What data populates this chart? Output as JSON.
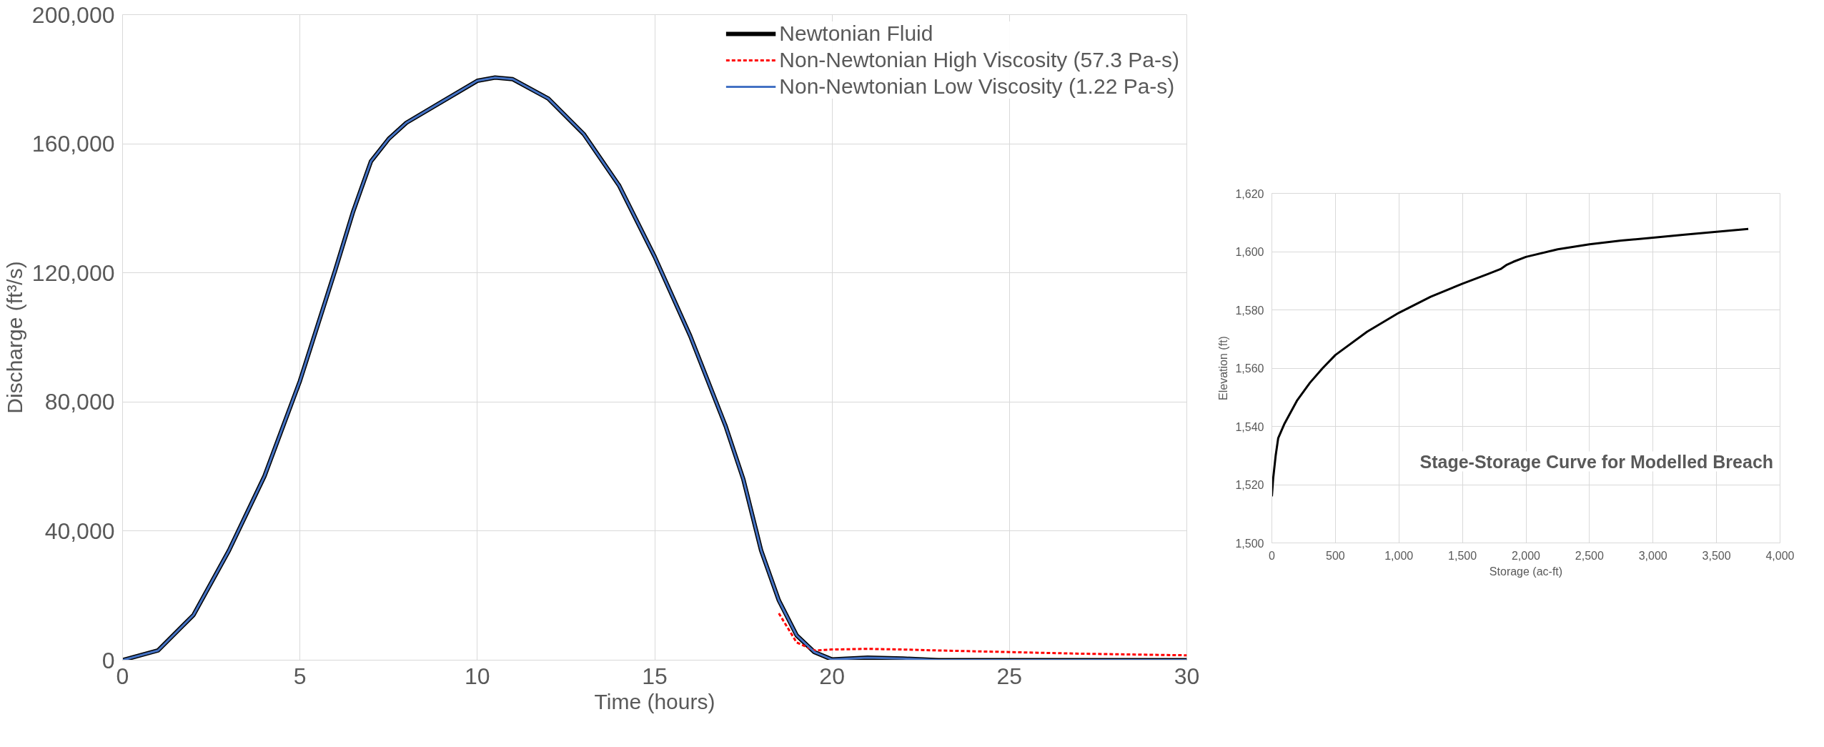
{
  "chart_data": [
    {
      "type": "line",
      "xlabel": "Time (hours)",
      "ylabel": "Discharge (ft³/s)",
      "x": [
        0,
        1,
        2,
        3,
        4,
        5,
        6,
        6.5,
        7,
        7.5,
        8,
        9,
        10,
        10.5,
        11,
        12,
        13,
        14,
        15,
        16,
        17,
        17.5,
        18,
        18.5,
        19,
        19.5,
        20,
        21,
        22,
        23,
        25,
        27,
        30
      ],
      "series": [
        {
          "name": "Newtonian Fluid",
          "color": "#000000",
          "line_style": "solid",
          "values": [
            0,
            3000,
            14000,
            34000,
            57000,
            86500,
            121000,
            139000,
            154500,
            161500,
            166500,
            173000,
            179500,
            180500,
            180000,
            174000,
            163000,
            147000,
            125000,
            100500,
            72500,
            56000,
            34000,
            18500,
            7700,
            2500,
            200,
            800,
            500,
            0,
            0,
            0,
            0
          ]
        },
        {
          "name": "Non-Newtonian High Viscosity (57.3 Pa-s)",
          "color": "#ff0000",
          "line_style": "dashed",
          "values": [
            null,
            null,
            null,
            null,
            null,
            null,
            null,
            null,
            null,
            null,
            null,
            null,
            null,
            null,
            null,
            null,
            null,
            null,
            null,
            null,
            null,
            null,
            null,
            14500,
            5500,
            3000,
            3300,
            3500,
            3300,
            3000,
            2500,
            2000,
            1500
          ]
        },
        {
          "name": "Non-Newtonian Low Viscosity (1.22 Pa-s)",
          "color": "#4472c4",
          "line_style": "solid",
          "values": [
            0,
            3000,
            14000,
            34000,
            57000,
            86500,
            121000,
            139000,
            154500,
            161500,
            166500,
            173000,
            179500,
            180500,
            180000,
            174000,
            163000,
            147000,
            125000,
            100500,
            72500,
            56000,
            34000,
            18500,
            7700,
            2500,
            200,
            800,
            500,
            0,
            0,
            0,
            0
          ]
        }
      ],
      "xlim": [
        0,
        30
      ],
      "xticks": [
        0,
        5,
        10,
        15,
        20,
        25,
        30
      ],
      "ylim": [
        0,
        200000
      ],
      "yticks": [
        {
          "value": 0,
          "label": "0"
        },
        {
          "value": 40000,
          "label": "40,000"
        },
        {
          "value": 80000,
          "label": "80,000"
        },
        {
          "value": 120000,
          "label": "120,000"
        },
        {
          "value": 160000,
          "label": "160,000"
        },
        {
          "value": 200000,
          "label": "200,000"
        }
      ],
      "grid": true,
      "legend": "top right"
    },
    {
      "type": "line",
      "xlabel": "Storage (ac-ft)",
      "ylabel": "Elevation (ft)",
      "annotations": [
        "Stage-Storage Curve for Modelled Breach"
      ],
      "x": [
        0,
        10,
        30,
        50,
        100,
        200,
        300,
        400,
        500,
        750,
        1000,
        1250,
        1500,
        1700,
        1800,
        1850,
        1900,
        2000,
        2250,
        2500,
        2750,
        3000,
        3250,
        3500,
        3750
      ],
      "series": [
        {
          "color": "#000000",
          "line_style": "solid",
          "values": [
            1516,
            1522,
            1530,
            1536,
            1541,
            1549,
            1555,
            1560,
            1564.5,
            1572.5,
            1579,
            1584.5,
            1589,
            1592.3,
            1594,
            1595.5,
            1596.5,
            1598.2,
            1600.8,
            1602.5,
            1603.8,
            1604.8,
            1605.8,
            1606.8,
            1607.8
          ]
        }
      ],
      "xlim": [
        0,
        4000
      ],
      "xticks": [
        0,
        500,
        {
          "value": 1000,
          "label": "1,000"
        },
        {
          "value": 1500,
          "label": "1,500"
        },
        {
          "value": 2000,
          "label": "2,000"
        },
        {
          "value": 2500,
          "label": "2,500"
        },
        {
          "value": 3000,
          "label": "3,000"
        },
        {
          "value": 3500,
          "label": "3,500"
        },
        {
          "value": 4000,
          "label": "4,000"
        }
      ],
      "ylim": [
        1500,
        1620
      ],
      "yticks": [
        {
          "value": 1500,
          "label": "1,500"
        },
        {
          "value": 1520,
          "label": "1,520"
        },
        {
          "value": 1540,
          "label": "1,540"
        },
        {
          "value": 1560,
          "label": "1,560"
        },
        {
          "value": 1580,
          "label": "1,580"
        },
        {
          "value": 1600,
          "label": "1,600"
        },
        {
          "value": 1620,
          "label": "1,620"
        }
      ],
      "grid": true
    }
  ]
}
